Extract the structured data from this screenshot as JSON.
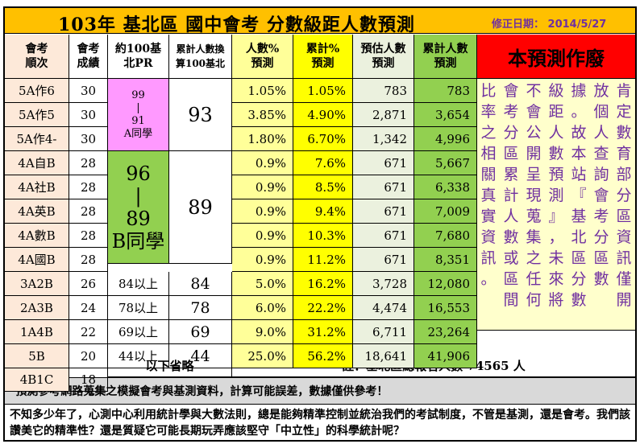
{
  "title": "103年 基北區 國中會考 分數級距人數預測",
  "revision": "修正日期： 2014/5/27",
  "headers": {
    "rank": "會考順次",
    "score": "會考成績",
    "pr": "約100基北PR",
    "converted": "累計人數換算100基北",
    "pct": "人數%預測",
    "cum_pct": "累計%預測",
    "est": "預估人數預測",
    "cum_est": "累計人數預測"
  },
  "header_lines": {
    "rank": [
      "會考",
      "順次"
    ],
    "score": [
      "會考",
      "成績"
    ],
    "pr": [
      "約100基",
      "北PR"
    ],
    "converted": [
      "累計人數換",
      "算100基北"
    ],
    "pct": [
      "人數%",
      "預測"
    ],
    "cum_pct": [
      "累計%",
      "預測"
    ],
    "est": [
      "預估人數",
      "預測"
    ],
    "cum_est": [
      "累計人數",
      "預測"
    ]
  },
  "void_label": "本預測作廢",
  "rows": [
    {
      "rank": "5A作6",
      "score": "30",
      "pct": "1.05%",
      "cum_pct": "1.05%",
      "est": "783",
      "cum_est": "783"
    },
    {
      "rank": "5A作5",
      "score": "30",
      "pct": "3.85%",
      "cum_pct": "4.90%",
      "est": "2,871",
      "cum_est": "3,654"
    },
    {
      "rank": "5A作4-",
      "score": "30",
      "pct": "1.80%",
      "cum_pct": "6.70%",
      "est": "1,342",
      "cum_est": "4,996"
    },
    {
      "rank": "4A自B",
      "score": "28",
      "pct": "0.9%",
      "cum_pct": "7.6%",
      "est": "671",
      "cum_est": "5,667"
    },
    {
      "rank": "4A社B",
      "score": "28",
      "pct": "0.9%",
      "cum_pct": "8.5%",
      "est": "671",
      "cum_est": "6,338"
    },
    {
      "rank": "4A英B",
      "score": "28",
      "pct": "0.9%",
      "cum_pct": "9.4%",
      "est": "671",
      "cum_est": "7,009"
    },
    {
      "rank": "4A數B",
      "score": "28",
      "pct": "0.9%",
      "cum_pct": "10.3%",
      "est": "671",
      "cum_est": "7,680"
    },
    {
      "rank": "4A國B",
      "score": "28",
      "pct": "0.9%",
      "cum_pct": "11.2%",
      "est": "671",
      "cum_est": "8,351"
    },
    {
      "rank": "3A2B",
      "score": "26",
      "pr": "84以上",
      "converted": "84",
      "pct": "5.0%",
      "cum_pct": "16.2%",
      "est": "3,728",
      "cum_est": "12,080"
    },
    {
      "rank": "2A3B",
      "score": "24",
      "pr": "78以上",
      "converted": "78",
      "pct": "6.0%",
      "cum_pct": "22.2%",
      "est": "4,474",
      "cum_est": "16,553"
    },
    {
      "rank": "1A4B",
      "score": "22",
      "pr": "69以上",
      "converted": "69",
      "pct": "9.0%",
      "cum_pct": "31.2%",
      "est": "6,711",
      "cum_est": "23,264"
    },
    {
      "rank": "5B",
      "score": "20",
      "pr": "44以上",
      "converted": "44",
      "pct": "25.0%",
      "cum_pct": "56.2%",
      "est": "18,641",
      "cum_est": "41,906"
    },
    {
      "rank": "4B1C",
      "score": "18"
    }
  ],
  "group_a": {
    "pr_top": "99",
    "pr_bar1": "|",
    "pr_mid": "91",
    "pr_label": "A同學",
    "converted": "93"
  },
  "group_b": {
    "pr_top": "96",
    "pr_bar": "|",
    "pr_mid": "89",
    "pr_label": "B同學",
    "converted": "89"
  },
  "omitted": "以下省略",
  "note_total": "註：基北區總報名人數 74565 人",
  "side_text": [
    "比會不級據放肯",
    "率考會距。個定",
    "之分公人故人數",
    "相區開數本查育",
    "關累呈預站詢部",
    "真計現測『會分",
    "實人蒐』基考區",
    "資數集，北分資",
    "訊或之未區區訊",
    "。區任來分數僅",
    "　間何將數　開"
  ],
  "disclaimer": "*預測參考網路蒐集之模擬會考與基測資料，計算可能誤差，數據僅供參考！",
  "closing": "不知多少年了，心測中心利用統計學與大數法則，總是能夠精準控制並統治我們的考試制度，不管是基測，還是會考。我們該讚美它的精準性？還是質疑它可能長期玩弄應該堅守「中立性」的科學統計呢？",
  "colors": {
    "title_bg": "#FFC000",
    "pct_bg": "#FFFF99",
    "cum_pct_bg": "#FFFF00",
    "est_bg": "#EBF1DE",
    "cum_est_bg": "#92D050",
    "rank_bg": "#FDE9D9",
    "pr_a_bg": "#FF99FF",
    "pr_b_bg": "#92D050",
    "void_bg": "#FF0000",
    "side_bg": "#FFFFCC",
    "text_purple": "#7030A0"
  }
}
